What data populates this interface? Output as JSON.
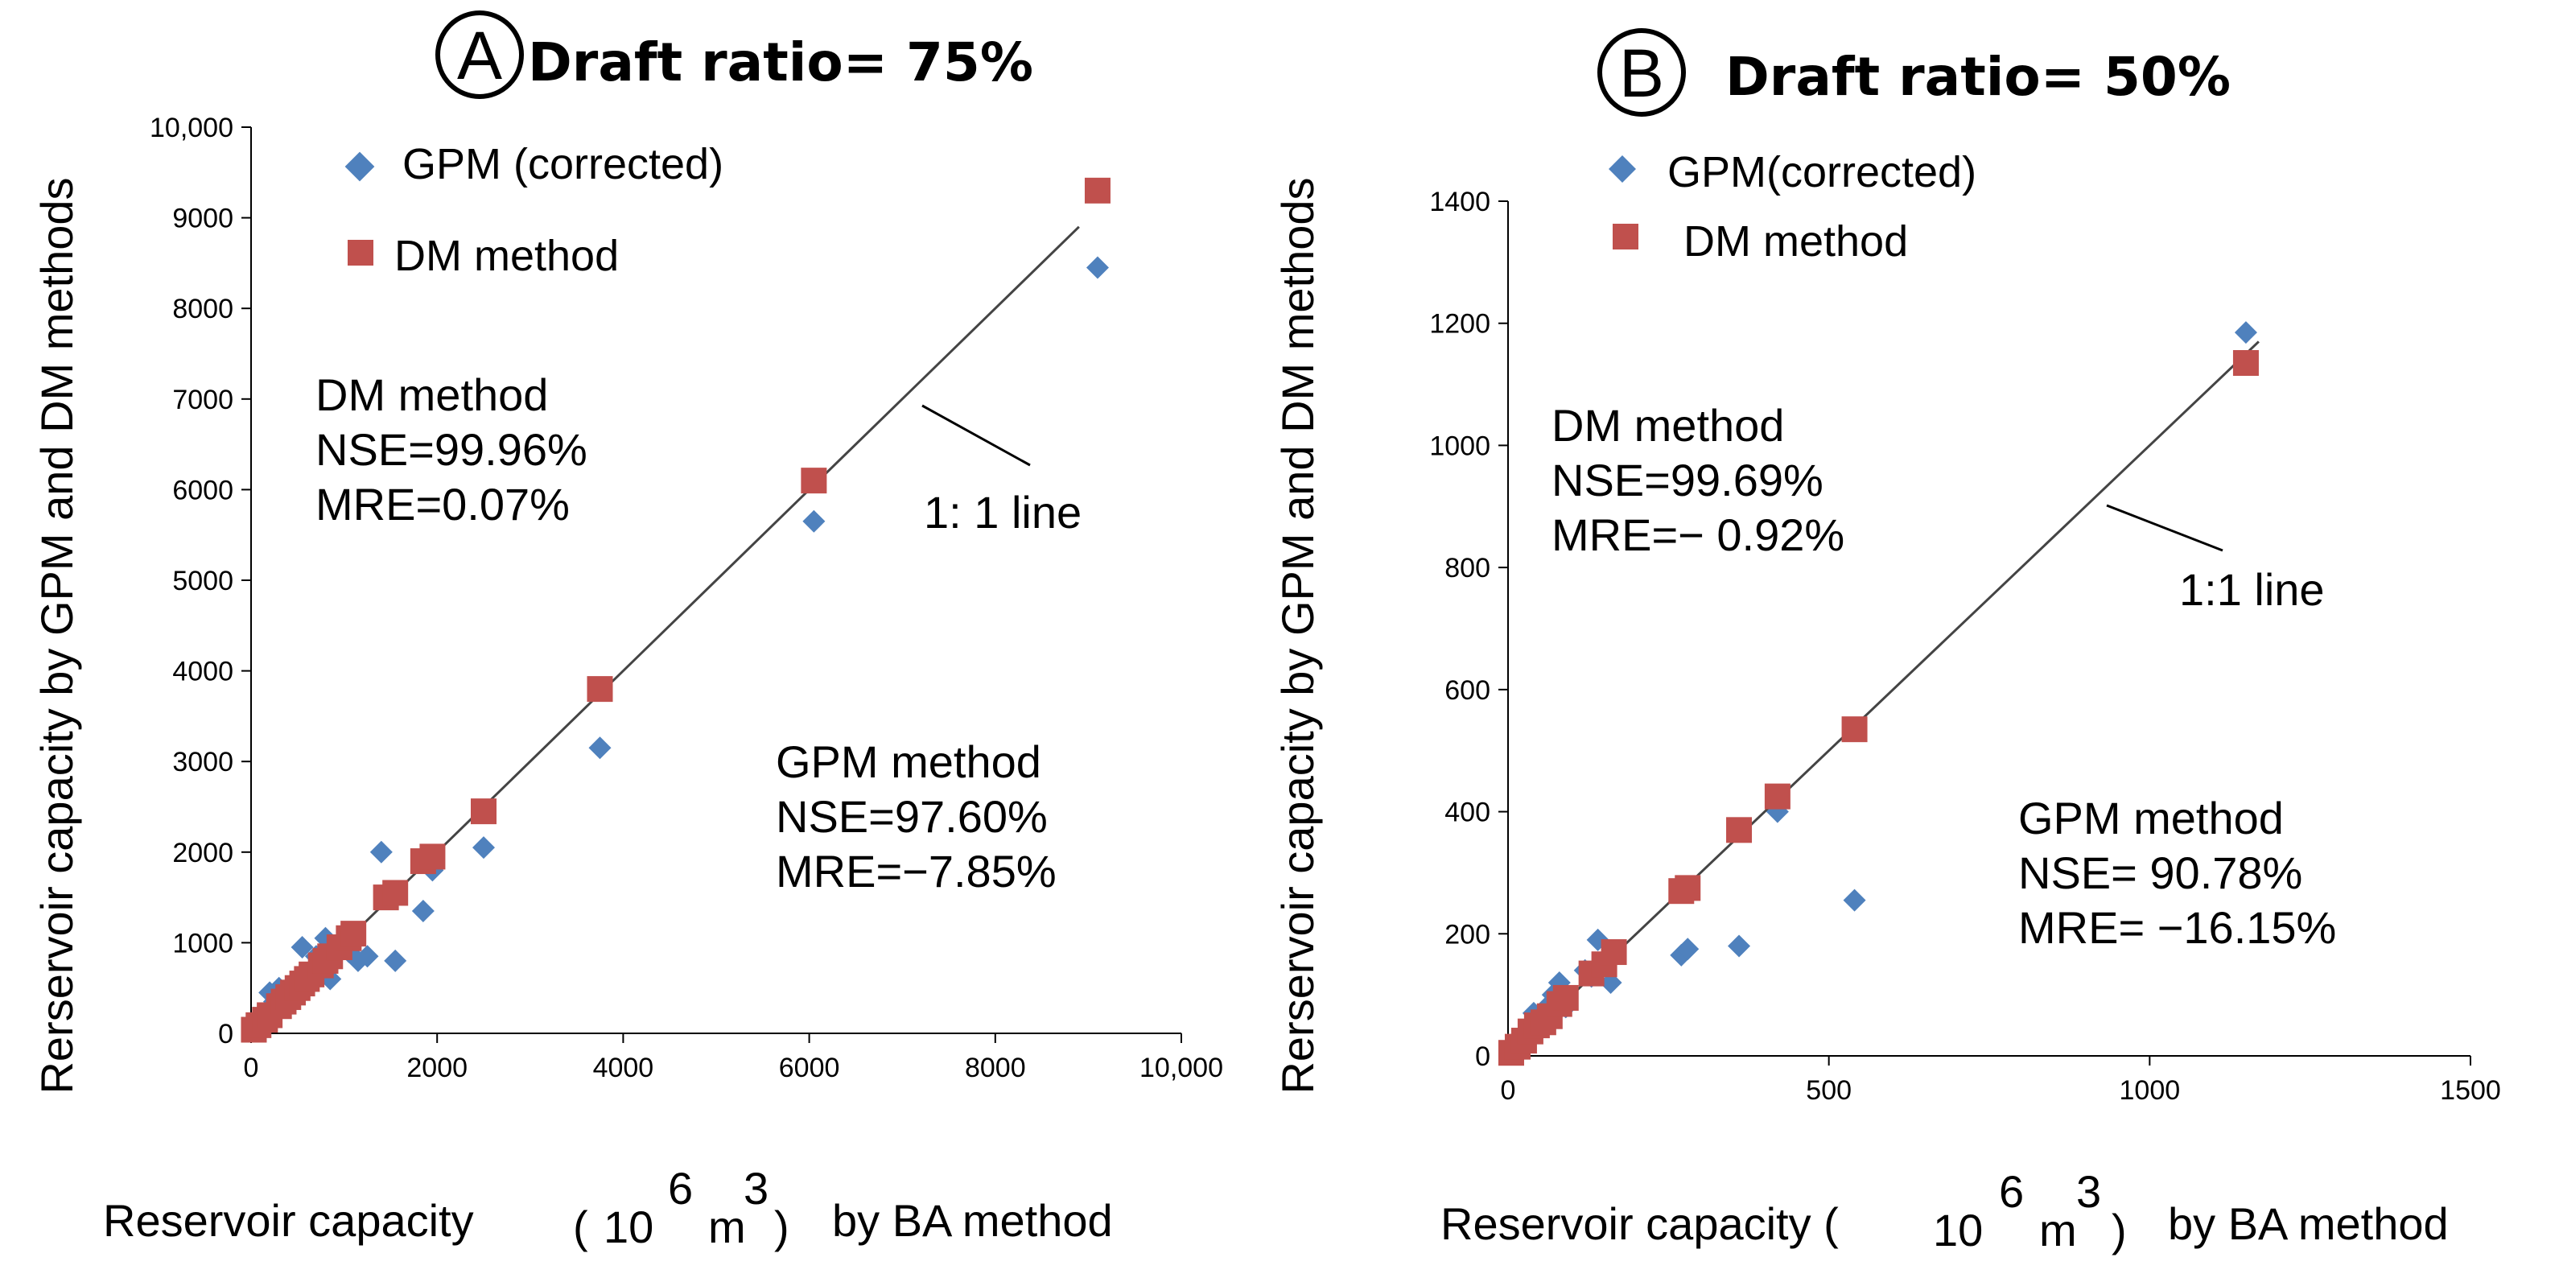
{
  "colors": {
    "gpm": "#4f81bd",
    "dm": "#c0504d",
    "line": "#444444"
  },
  "chart_data": [
    {
      "panel": "A",
      "type": "scatter",
      "title": "Draft ratio= 75%",
      "xlabel": "Reservoir capacity",
      "xlabel_unit_open": "(",
      "xlabel_unit_base": "10",
      "xlabel_unit_exp1": "6",
      "xlabel_unit_mid": "m",
      "xlabel_unit_exp2": "3",
      "xlabel_unit_close": ")",
      "xlabel_suffix": "by BA method",
      "ylabel": "Rerservoir capacity by GPM and DM methods",
      "xlim": [
        0,
        10000
      ],
      "ylim": [
        0,
        10000
      ],
      "xticks": [
        0,
        2000,
        4000,
        6000,
        8000,
        10000
      ],
      "xtick_labels": [
        "0",
        "2000",
        "4000",
        "6000",
        "8000",
        "10,000"
      ],
      "yticks": [
        0,
        1000,
        2000,
        3000,
        4000,
        5000,
        6000,
        7000,
        8000,
        9000,
        10000
      ],
      "ytick_labels": [
        "0",
        "1000",
        "2000",
        "3000",
        "4000",
        "5000",
        "6000",
        "7000",
        "8000",
        "9000",
        "10,000"
      ],
      "legend": [
        "GPM (corrected)",
        "DM method"
      ],
      "line_label": "1: 1 line",
      "dm_stats": [
        "DM method",
        "NSE=99.96%",
        "MRE=0.07%"
      ],
      "gpm_stats": [
        "GPM method",
        "NSE=97.60%",
        "MRE=−7.85%"
      ],
      "series": [
        {
          "name": "GPM (corrected)",
          "x": [
            50,
            100,
            200,
            250,
            300,
            350,
            450,
            550,
            600,
            650,
            700,
            800,
            850,
            900,
            950,
            1050,
            1150,
            1250,
            1400,
            1550,
            1850,
            1950,
            2500,
            3750,
            6050,
            9100
          ],
          "y": [
            50,
            150,
            450,
            350,
            500,
            300,
            550,
            950,
            650,
            700,
            850,
            1050,
            600,
            950,
            1000,
            900,
            800,
            850,
            2000,
            800,
            1350,
            1800,
            2050,
            3150,
            5650,
            8450
          ]
        },
        {
          "name": "DM method",
          "x": [
            30,
            80,
            150,
            200,
            300,
            350,
            400,
            450,
            500,
            550,
            600,
            650,
            750,
            800,
            850,
            950,
            1050,
            1100,
            1450,
            1550,
            1850,
            1950,
            2500,
            3750,
            6050,
            9100
          ],
          "y": [
            40,
            90,
            150,
            200,
            300,
            350,
            400,
            450,
            500,
            550,
            600,
            650,
            750,
            800,
            850,
            950,
            1050,
            1100,
            1500,
            1550,
            1900,
            1950,
            2450,
            3800,
            6100,
            9300
          ]
        }
      ],
      "one_to_one": [
        0,
        8900
      ]
    },
    {
      "panel": "B",
      "type": "scatter",
      "title": "Draft ratio= 50%",
      "xlabel": "Reservoir capacity (",
      "xlabel_unit_base": "10",
      "xlabel_unit_exp1": "6",
      "xlabel_unit_mid": "m",
      "xlabel_unit_exp2": "3",
      "xlabel_unit_close": ")",
      "xlabel_suffix": "by BA  method",
      "ylabel": "Rerservoir capacity by GPM and DM methods",
      "xlim": [
        0,
        1500
      ],
      "ylim": [
        0,
        1400
      ],
      "xticks": [
        0,
        500,
        1000,
        1500
      ],
      "xtick_labels": [
        "0",
        "500",
        "1000",
        "1500"
      ],
      "yticks": [
        0,
        200,
        400,
        600,
        800,
        1000,
        1200,
        1400
      ],
      "ytick_labels": [
        "0",
        "200",
        "400",
        "600",
        "800",
        "1000",
        "1200",
        "1400"
      ],
      "legend": [
        "GPM(corrected)",
        "DM method"
      ],
      "line_label": "1:1  line",
      "dm_stats": [
        "DM method",
        "NSE=99.69%",
        "MRE=− 0.92%"
      ],
      "gpm_stats": [
        "GPM method",
        "NSE= 90.78%",
        "MRE= −16.15%"
      ],
      "series": [
        {
          "name": "GPM(corrected)",
          "x": [
            10,
            20,
            40,
            50,
            60,
            70,
            80,
            90,
            120,
            130,
            140,
            160,
            270,
            280,
            360,
            420,
            540,
            1150
          ],
          "y": [
            10,
            30,
            70,
            60,
            80,
            100,
            120,
            80,
            140,
            130,
            190,
            120,
            165,
            175,
            180,
            400,
            255,
            1185
          ],
          "y_hidden_fix": true
        },
        {
          "name": "DM method",
          "x": [
            5,
            15,
            25,
            35,
            45,
            55,
            65,
            80,
            90,
            130,
            150,
            165,
            270,
            280,
            360,
            420,
            540,
            1150
          ],
          "y": [
            5,
            15,
            25,
            40,
            50,
            55,
            65,
            85,
            95,
            135,
            150,
            170,
            270,
            275,
            370,
            425,
            535,
            1135
          ]
        }
      ],
      "one_to_one": [
        0,
        1170
      ]
    }
  ]
}
